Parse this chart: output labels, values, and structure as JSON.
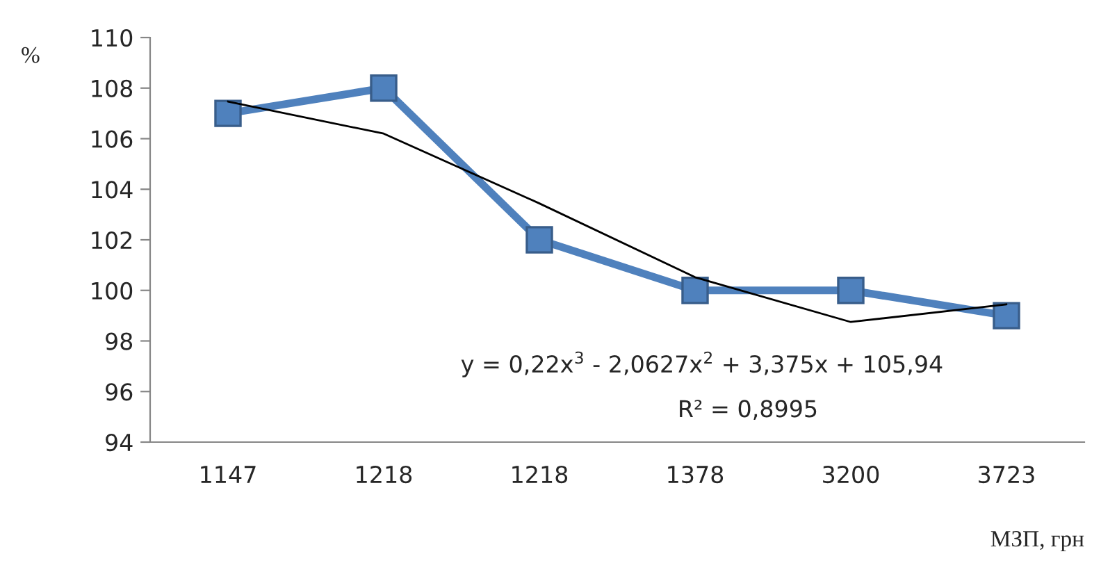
{
  "chart_data": {
    "type": "line",
    "categories": [
      "1147",
      "1218",
      "1218",
      "1378",
      "3200",
      "3723"
    ],
    "series": [
      {
        "color": "#4f81bd",
        "values": [
          107,
          108,
          102,
          100,
          100,
          99
        ],
        "marker": "square"
      },
      {
        "type": "line",
        "color": "#000000",
        "values": [
          107.47,
          106.2,
          103.44,
          100.52,
          98.75,
          99.45
        ],
        "marker": "none"
      }
    ],
    "ylabel": "%",
    "xlabel": "МЗП, грн",
    "ylim": [
      94,
      110
    ],
    "yticks": [
      94,
      96,
      98,
      100,
      102,
      104,
      106,
      108,
      110
    ],
    "grid": false,
    "legend": false,
    "annotations": [
      "y = 0,22x$^{3}$ - 2,0627x$^{2}$ + 3,375x + 105,94",
      "R² = 0,8995"
    ]
  }
}
